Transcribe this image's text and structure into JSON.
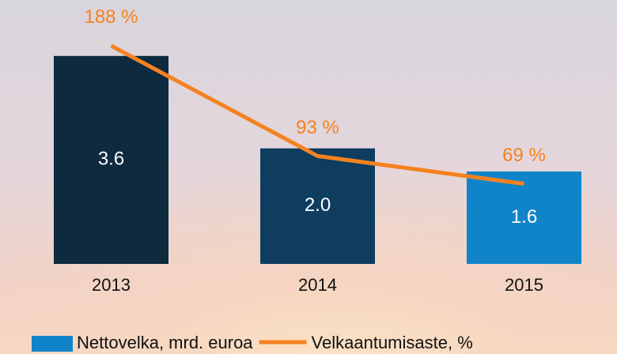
{
  "chart_data": {
    "type": "combo",
    "categories": [
      "2013",
      "2014",
      "2015"
    ],
    "series": [
      {
        "name": "Nettovelka, mrd. euroa",
        "type": "bar",
        "color": "#1084c8",
        "colors": [
          "#0d2a3e",
          "#0e3d5f",
          "#1084c8"
        ],
        "values": [
          3.6,
          2.0,
          1.6
        ],
        "value_labels": [
          "3.6",
          "2.0",
          "1.6"
        ]
      },
      {
        "name": "Velkaantumisaste, %",
        "type": "line",
        "axis": "y2",
        "color": "#f58220",
        "values": [
          188,
          93,
          69
        ],
        "value_labels": [
          "188 %",
          "93 %",
          "69 %"
        ]
      }
    ],
    "ylim": [
      0,
      4.5
    ],
    "y2lim": [
      0,
      224
    ],
    "legend": "bottom"
  }
}
